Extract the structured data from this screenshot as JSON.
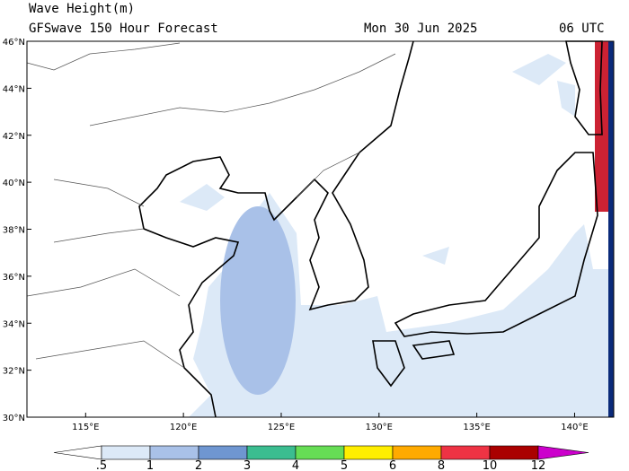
{
  "header": {
    "title": "Wave Height(m)",
    "subtitle": "GFSwave 150 Hour Forecast",
    "date": "Mon 30 Jun 2025",
    "time": "06 UTC"
  },
  "map": {
    "xlim": [
      112,
      142
    ],
    "ylim": [
      30,
      46
    ],
    "yticks": [
      {
        "value": 30,
        "label": "30°N"
      },
      {
        "value": 32,
        "label": "32°N"
      },
      {
        "value": 34,
        "label": "34°N"
      },
      {
        "value": 36,
        "label": "36°N"
      },
      {
        "value": 38,
        "label": "38°N"
      },
      {
        "value": 40,
        "label": "40°N"
      },
      {
        "value": 42,
        "label": "42°N"
      },
      {
        "value": 44,
        "label": "44°N"
      },
      {
        "value": 46,
        "label": "46°N"
      }
    ],
    "xticks": [
      {
        "value": 115,
        "label": "115°E"
      },
      {
        "value": 120,
        "label": "120°E"
      },
      {
        "value": 125,
        "label": "125°E"
      },
      {
        "value": 130,
        "label": "130°E"
      },
      {
        "value": 135,
        "label": "135°E"
      },
      {
        "value": 140,
        "label": "140°E"
      }
    ]
  },
  "colorbar": {
    "levels": [
      {
        "value": 0.5,
        "label": ".5"
      },
      1,
      2,
      3,
      4,
      5,
      6,
      8,
      10,
      12
    ],
    "colors": [
      "#ffffff",
      "#dce9f7",
      "#a9c1e8",
      "#6f96d1",
      "#3bbd90",
      "#66dd55",
      "#ffee00",
      "#ffaa00",
      "#ee3344",
      "#aa0000",
      "#cc00cc"
    ]
  }
}
